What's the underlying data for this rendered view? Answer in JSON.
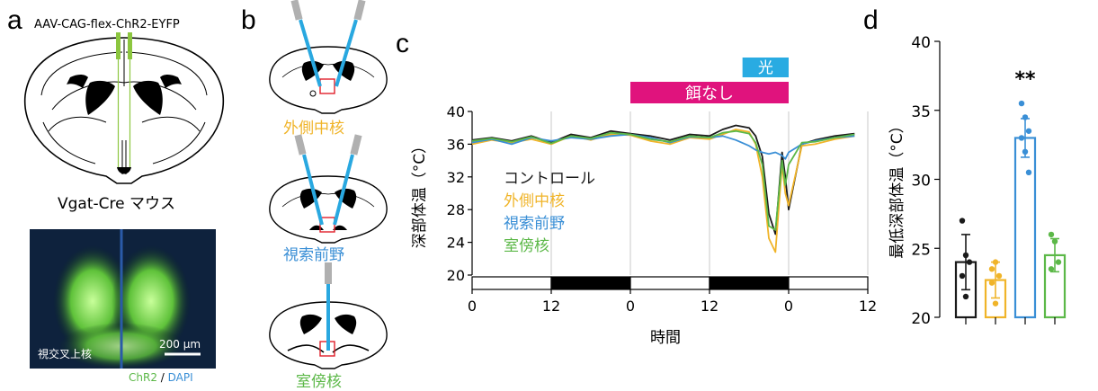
{
  "panels": {
    "a": {
      "letter": "a",
      "construct": "AAV-CAG-flex-ChR2-EYFP",
      "mouse_line": "Vgat-Cre マウス",
      "region_label": "視交叉上核",
      "scale_bar": "200 µm",
      "stain_chr2": "ChR2",
      "stain_sep": " / ",
      "stain_dapi": "DAPI"
    },
    "b": {
      "letter": "b",
      "sections": [
        "外側中核",
        "視索前野",
        "室傍核"
      ]
    },
    "c": {
      "letter": "c"
    },
    "d": {
      "letter": "d"
    }
  },
  "colors": {
    "control": "#1a1a1a",
    "lateral": "#f0b429",
    "preoptic": "#3a8fd6",
    "paraventricular": "#5cb848",
    "light_bar": "#29abe2",
    "fasting_bar": "#e0137d",
    "fiber": "#29a8e0",
    "construct_green": "#8cc63f"
  },
  "chart_data": [
    {
      "type": "line",
      "ylabel": "深部体温（°C）",
      "xlabel": "時間",
      "ylim": [
        20,
        40
      ],
      "y_ticks": [
        "20",
        "24",
        "28",
        "32",
        "36",
        "40"
      ],
      "x_ticks": [
        "0",
        "12",
        "0",
        "12",
        "0",
        "12"
      ],
      "x_tick_hours": [
        0,
        12,
        24,
        36,
        48,
        60
      ],
      "xlim": [
        0,
        60
      ],
      "grid": "vertical",
      "annotations": {
        "light": "光",
        "fasting": "餌なし"
      },
      "light_period_hours": [
        41,
        48
      ],
      "fasting_period_hours": [
        24,
        48
      ],
      "light_dark_bars": [
        {
          "from": 0,
          "to": 12,
          "phase": "light"
        },
        {
          "from": 12,
          "to": 24,
          "phase": "dark"
        },
        {
          "from": 24,
          "to": 36,
          "phase": "light"
        },
        {
          "from": 36,
          "to": 48,
          "phase": "dark"
        },
        {
          "from": 48,
          "to": 60,
          "phase": "light"
        }
      ],
      "legend_position": "middle-left",
      "series": [
        {
          "name": "コントロール",
          "color_key": "control",
          "x": [
            0,
            3,
            6,
            9,
            12,
            15,
            18,
            21,
            24,
            27,
            30,
            33,
            36,
            38,
            40,
            42,
            43,
            44,
            45,
            46,
            47,
            47.5,
            48,
            50,
            52,
            55,
            58
          ],
          "y": [
            36.5,
            36.8,
            36.4,
            37.0,
            36.2,
            37.2,
            36.8,
            37.6,
            37.3,
            37.0,
            36.5,
            37.2,
            37.0,
            37.8,
            38.3,
            38.0,
            37.0,
            34.5,
            27.5,
            25.0,
            35.0,
            32.0,
            28.0,
            36.0,
            36.5,
            37.0,
            37.3
          ]
        },
        {
          "name": "外側中核",
          "color_key": "lateral",
          "x": [
            0,
            3,
            6,
            9,
            12,
            15,
            18,
            21,
            24,
            27,
            30,
            33,
            36,
            38,
            40,
            42,
            43,
            44,
            45,
            46,
            47,
            47.5,
            48,
            50,
            52,
            55,
            58
          ],
          "y": [
            36.0,
            36.5,
            36.2,
            36.6,
            36.0,
            37.0,
            36.5,
            37.2,
            37.1,
            36.4,
            36.0,
            36.8,
            36.6,
            37.2,
            37.8,
            37.5,
            36.0,
            32.0,
            24.5,
            22.8,
            33.5,
            30.0,
            28.5,
            35.8,
            36.0,
            36.6,
            37.0
          ]
        },
        {
          "name": "視索前野",
          "color_key": "preoptic",
          "x": [
            0,
            3,
            6,
            9,
            12,
            15,
            18,
            21,
            24,
            27,
            30,
            33,
            36,
            38,
            40,
            42,
            43,
            44,
            45,
            46,
            47,
            47.5,
            48,
            50,
            52,
            55,
            58
          ],
          "y": [
            36.2,
            36.6,
            36.0,
            36.8,
            36.4,
            36.8,
            36.6,
            37.0,
            37.2,
            36.8,
            36.2,
            36.9,
            36.8,
            37.0,
            36.5,
            35.8,
            35.3,
            35.0,
            34.8,
            35.0,
            34.6,
            34.2,
            35.0,
            36.0,
            36.4,
            36.8,
            37.0
          ]
        },
        {
          "name": "室傍核",
          "color_key": "paraventricular",
          "x": [
            0,
            3,
            6,
            9,
            12,
            15,
            18,
            21,
            24,
            27,
            30,
            33,
            36,
            38,
            40,
            42,
            43,
            44,
            45,
            46,
            47,
            47.5,
            48,
            50,
            52,
            55,
            58
          ],
          "y": [
            36.4,
            36.7,
            36.3,
            36.9,
            36.1,
            37.0,
            36.7,
            37.4,
            37.2,
            36.6,
            36.3,
            37.0,
            36.8,
            37.4,
            37.6,
            37.3,
            36.2,
            33.5,
            26.0,
            25.5,
            34.0,
            31.0,
            33.5,
            36.2,
            36.3,
            36.8,
            37.2
          ]
        }
      ]
    },
    {
      "type": "bar",
      "ylabel": "最低深部体温（°C）",
      "ylim": [
        20,
        40
      ],
      "y_ticks": [
        "20",
        "25",
        "30",
        "35",
        "40"
      ],
      "categories": [
        "コントロール",
        "外側中核",
        "視索前野",
        "室傍核"
      ],
      "values": [
        24.0,
        22.7,
        33.0,
        24.5
      ],
      "errors": [
        2.0,
        1.3,
        1.4,
        1.2
      ],
      "points": [
        [
          27.0,
          24.5,
          24.0,
          23.0,
          21.5
        ],
        [
          23.5,
          24.0,
          23.0,
          22.5,
          21.0
        ],
        [
          35.5,
          34.5,
          33.5,
          33.0,
          32.0,
          30.5
        ],
        [
          26.0,
          25.5,
          24.0,
          23.5
        ]
      ],
      "color_keys": [
        "control",
        "lateral",
        "preoptic",
        "paraventricular"
      ],
      "significance": {
        "index": 2,
        "label": "**"
      }
    }
  ]
}
